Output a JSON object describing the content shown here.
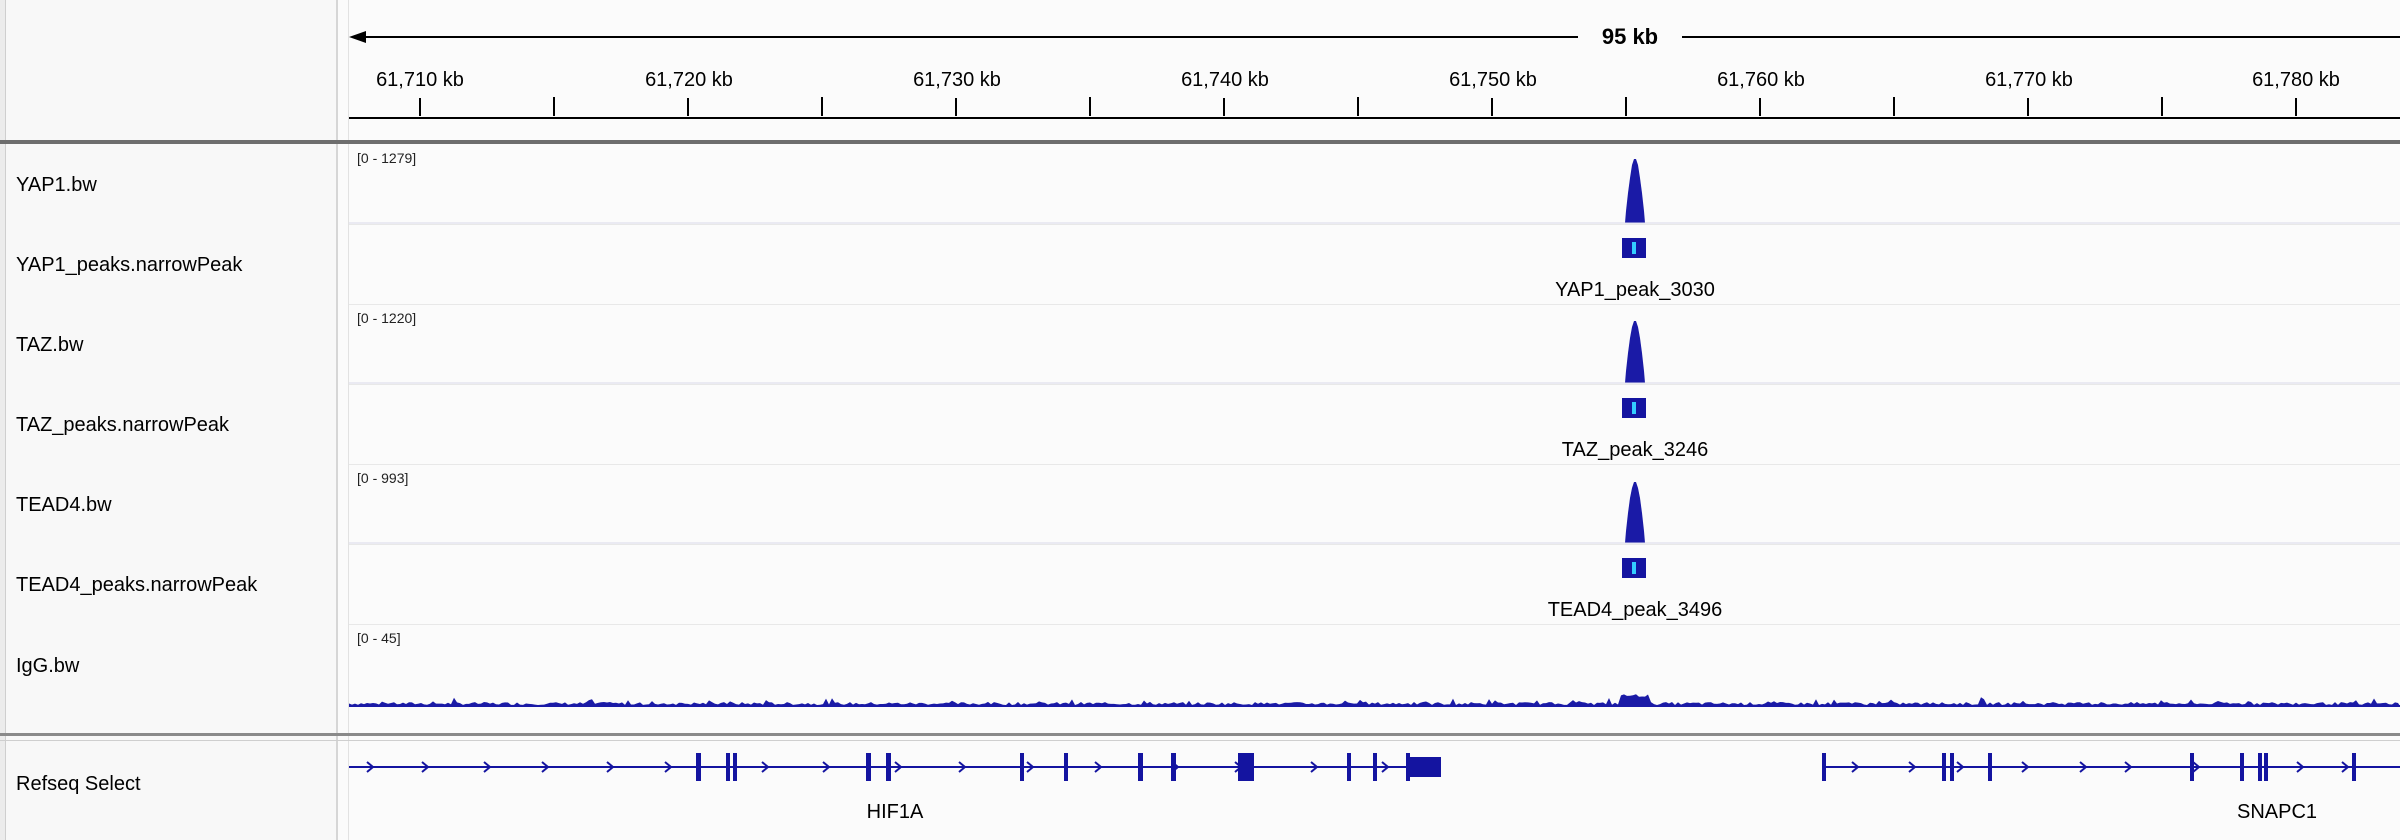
{
  "ruler": {
    "span_label": "95 kb",
    "tick_labels": [
      "61,710 kb",
      "61,720 kb",
      "61,730 kb",
      "61,740 kb",
      "61,750 kb",
      "61,760 kb",
      "61,770 kb",
      "61,780 kb"
    ]
  },
  "tracks": [
    {
      "name": "YAP1.bw",
      "range": "[0 - 1279]"
    },
    {
      "name": "YAP1_peaks.narrowPeak",
      "feature": "YAP1_peak_3030"
    },
    {
      "name": "TAZ.bw",
      "range": "[0 - 1220]"
    },
    {
      "name": "TAZ_peaks.narrowPeak",
      "feature": "TAZ_peak_3246"
    },
    {
      "name": "TEAD4.bw",
      "range": "[0 - 993]"
    },
    {
      "name": "TEAD4_peaks.narrowPeak",
      "feature": "TEAD4_peak_3496"
    },
    {
      "name": "IgG.bw",
      "range": "[0 - 45]"
    }
  ],
  "gene_track": {
    "name": "Refseq Select",
    "genes": [
      "HIF1A",
      "SNAPC1"
    ]
  },
  "colors": {
    "signal": "#1a1aa6",
    "peak_box": "#1414a0",
    "peak_summit": "#33ccff",
    "gene": "#1414a0"
  }
}
